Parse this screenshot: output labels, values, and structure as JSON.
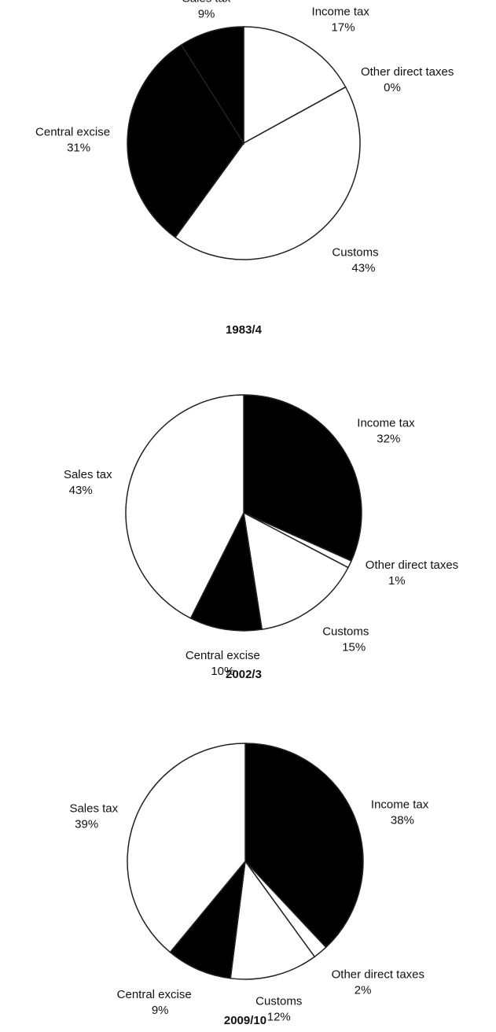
{
  "chart_data": [
    {
      "type": "pie",
      "title": "1983/4",
      "categories": [
        "Income tax",
        "Other direct taxes",
        "Customs",
        "Central excise",
        "Sales tax"
      ],
      "values": [
        17,
        0,
        43,
        31,
        9
      ],
      "value_labels": [
        "17%",
        "0%",
        "43%",
        "31%",
        "9%"
      ],
      "colors": [
        "#ffffff",
        "#ffffff",
        "#ffffff",
        "#000000",
        "#000000"
      ]
    },
    {
      "type": "pie",
      "title": "2002/3",
      "categories": [
        "Income tax",
        "Other direct taxes",
        "Customs",
        "Central excise",
        "Sales tax"
      ],
      "values": [
        32,
        1,
        15,
        10,
        43
      ],
      "value_labels": [
        "32%",
        "1%",
        "15%",
        "10%",
        "43%"
      ],
      "colors": [
        "#000000",
        "#ffffff",
        "#ffffff",
        "#000000",
        "#ffffff"
      ]
    },
    {
      "type": "pie",
      "title": "2009/10",
      "categories": [
        "Income tax",
        "Other direct taxes",
        "Customs",
        "Central excise",
        "Sales tax"
      ],
      "values": [
        38,
        2,
        12,
        9,
        39
      ],
      "value_labels": [
        "38%",
        "2%",
        "12%",
        "9%",
        "39%"
      ],
      "colors": [
        "#000000",
        "#ffffff",
        "#ffffff",
        "#000000",
        "#ffffff"
      ]
    }
  ]
}
